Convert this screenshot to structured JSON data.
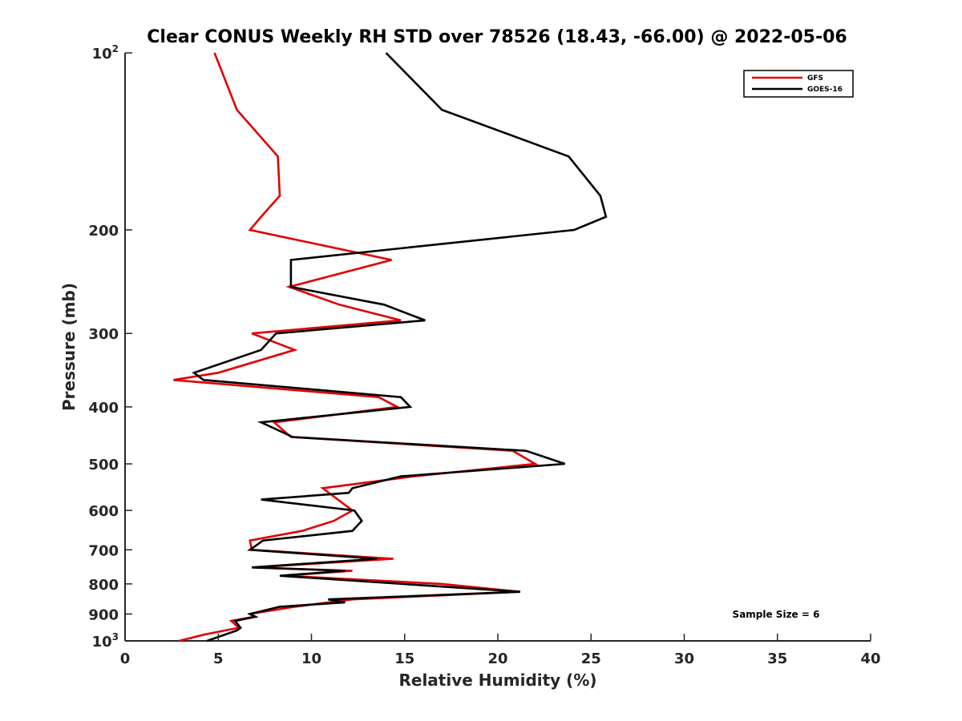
{
  "chart_data": {
    "type": "line",
    "title": "Clear CONUS Weekly RH STD over 78526 (18.43, -66.00) @ 2022-05-06",
    "xlabel": "Relative Humidity (%)",
    "ylabel": "Pressure (mb)",
    "xlim": [
      0,
      40
    ],
    "ylim": [
      100,
      1000
    ],
    "y_scale": "log",
    "y_reversed": true,
    "grid": false,
    "legend_position": "top-right",
    "x_ticks": [
      0,
      5,
      10,
      15,
      20,
      25,
      30,
      35,
      40
    ],
    "x_tick_labels": [
      "0",
      "5",
      "10",
      "15",
      "20",
      "25",
      "30",
      "35",
      "40"
    ],
    "y_ticks": [
      100,
      200,
      300,
      400,
      500,
      600,
      700,
      800,
      900,
      1000
    ],
    "y_tick_labels": [
      {
        "base": "10",
        "exp": "2"
      },
      {
        "base": "200",
        "exp": ""
      },
      {
        "base": "300",
        "exp": ""
      },
      {
        "base": "400",
        "exp": ""
      },
      {
        "base": "500",
        "exp": ""
      },
      {
        "base": "600",
        "exp": ""
      },
      {
        "base": "700",
        "exp": ""
      },
      {
        "base": "800",
        "exp": ""
      },
      {
        "base": "900",
        "exp": ""
      },
      {
        "base": "10",
        "exp": "3"
      }
    ],
    "annotation": "Sample Size = 6",
    "series": [
      {
        "name": "GFS",
        "color": "#e00000",
        "points": [
          [
            4.8,
            100
          ],
          [
            6.0,
            125
          ],
          [
            8.2,
            150
          ],
          [
            8.3,
            175
          ],
          [
            7.3,
            190
          ],
          [
            6.7,
            200
          ],
          [
            14.3,
            225
          ],
          [
            8.8,
            250
          ],
          [
            11.5,
            268
          ],
          [
            14.8,
            285
          ],
          [
            6.8,
            300
          ],
          [
            9.1,
            320
          ],
          [
            5.0,
            350
          ],
          [
            2.6,
            360
          ],
          [
            13.6,
            385
          ],
          [
            14.6,
            400
          ],
          [
            8.0,
            425
          ],
          [
            8.9,
            450
          ],
          [
            20.8,
            475
          ],
          [
            22.0,
            500
          ],
          [
            15.5,
            525
          ],
          [
            10.6,
            550
          ],
          [
            12.2,
            600
          ],
          [
            11.2,
            625
          ],
          [
            9.5,
            650
          ],
          [
            6.7,
            675
          ],
          [
            6.8,
            700
          ],
          [
            14.4,
            725
          ],
          [
            6.9,
            750
          ],
          [
            12.2,
            760
          ],
          [
            8.5,
            775
          ],
          [
            17.0,
            800
          ],
          [
            21.2,
            825
          ],
          [
            12.2,
            850
          ],
          [
            9.1,
            875
          ],
          [
            6.7,
            900
          ],
          [
            6.9,
            910
          ],
          [
            5.7,
            925
          ],
          [
            6.1,
            950
          ],
          [
            4.3,
            975
          ],
          [
            2.9,
            1000
          ]
        ]
      },
      {
        "name": "GOES-16",
        "color": "#000000",
        "points": [
          [
            14.0,
            100
          ],
          [
            17.0,
            125
          ],
          [
            23.8,
            150
          ],
          [
            25.5,
            175
          ],
          [
            25.8,
            190
          ],
          [
            24.1,
            200
          ],
          [
            8.9,
            225
          ],
          [
            8.9,
            250
          ],
          [
            13.9,
            268
          ],
          [
            16.1,
            285
          ],
          [
            8.1,
            300
          ],
          [
            7.3,
            320
          ],
          [
            3.7,
            350
          ],
          [
            4.2,
            360
          ],
          [
            14.8,
            385
          ],
          [
            15.3,
            400
          ],
          [
            7.3,
            425
          ],
          [
            9.0,
            450
          ],
          [
            21.5,
            475
          ],
          [
            23.6,
            500
          ],
          [
            14.8,
            525
          ],
          [
            12.2,
            550
          ],
          [
            12.0,
            560
          ],
          [
            7.3,
            575
          ],
          [
            12.3,
            600
          ],
          [
            12.7,
            625
          ],
          [
            12.2,
            650
          ],
          [
            7.4,
            675
          ],
          [
            6.7,
            700
          ],
          [
            13.5,
            725
          ],
          [
            6.8,
            750
          ],
          [
            11.8,
            760
          ],
          [
            8.3,
            775
          ],
          [
            21.2,
            825
          ],
          [
            10.9,
            850
          ],
          [
            11.8,
            860
          ],
          [
            8.3,
            875
          ],
          [
            6.7,
            900
          ],
          [
            7.0,
            910
          ],
          [
            5.9,
            925
          ],
          [
            6.2,
            950
          ],
          [
            6.0,
            960
          ],
          [
            4.4,
            1000
          ]
        ]
      }
    ]
  }
}
